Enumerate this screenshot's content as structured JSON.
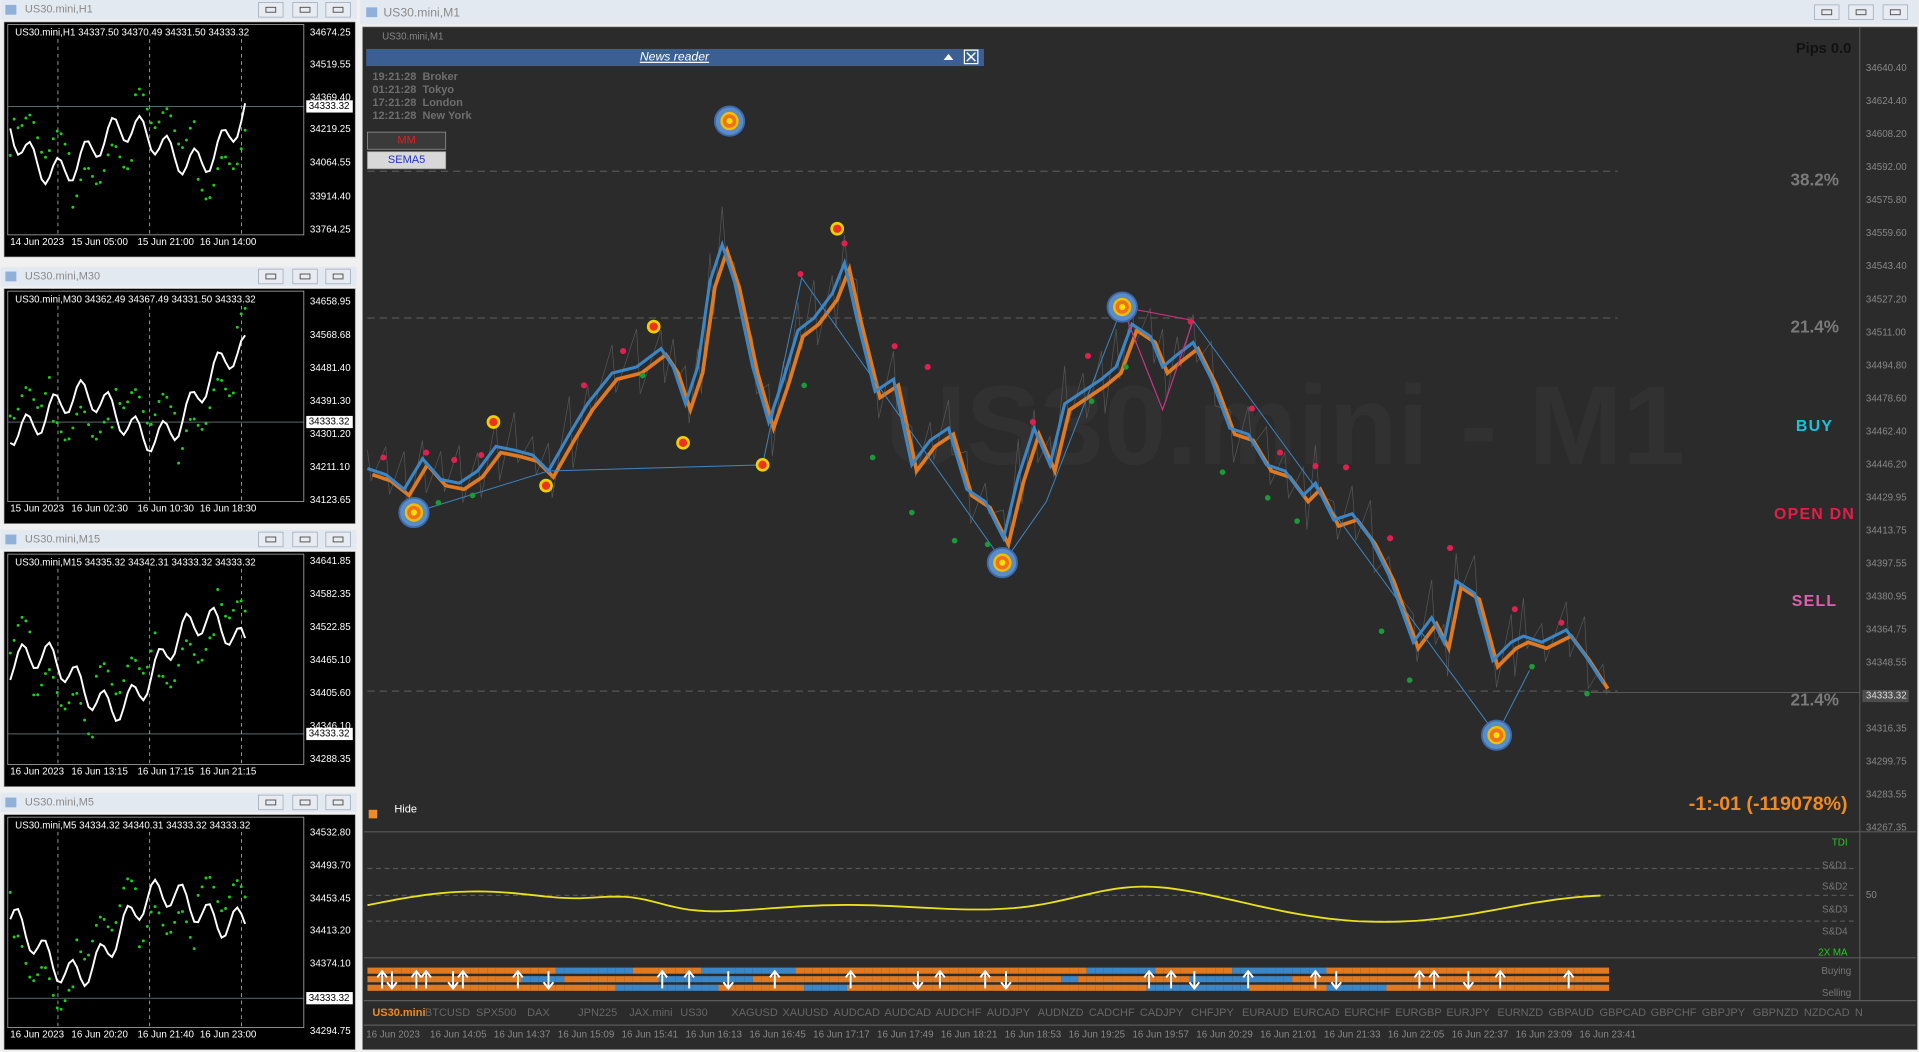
{
  "windows": [
    {
      "title": "US30.mini,H1",
      "header": "US30.mini,H1  34337.50 34370.49 34331.50 34333.32",
      "prices": [
        "34674.25",
        "34519.55",
        "34369.40",
        "34219.25",
        "34064.55",
        "33914.40",
        "33764.25"
      ],
      "current": "34333.32",
      "dates": [
        "14 Jun 2023",
        "15 Jun 05:00",
        "15 Jun 21:00",
        "16 Jun 14:00"
      ]
    },
    {
      "title": "US30.mini,M30",
      "header": "US30.mini,M30  34362.49 34367.49 34331.50 34333.32",
      "prices": [
        "34658.95",
        "34568.68",
        "34481.40",
        "34391.30",
        "34301.20",
        "34211.10",
        "34123.65"
      ],
      "current": "34333.32",
      "dates": [
        "15 Jun 2023",
        "16 Jun 02:30",
        "16 Jun 10:30",
        "16 Jun 18:30"
      ]
    },
    {
      "title": "US30.mini,M15",
      "header": "US30.mini,M15  34335.32 34342.31 34333.32 34333.32",
      "prices": [
        "34641.85",
        "34582.35",
        "34522.85",
        "34465.10",
        "34405.60",
        "34346.10",
        "34288.35"
      ],
      "current": "34333.32",
      "dates": [
        "16 Jun 2023",
        "16 Jun 13:15",
        "16 Jun 17:15",
        "16 Jun 21:15"
      ]
    },
    {
      "title": "US30.mini,M5",
      "header": "US30.mini,M5  34334.32 34340.31 34333.32 34333.32",
      "prices": [
        "34532.80",
        "34493.70",
        "34453.45",
        "34413.20",
        "34374.10",
        "34294.75"
      ],
      "current": "34333.32",
      "dates": [
        "16 Jun 2023",
        "16 Jun 20:20",
        "16 Jun 21:40",
        "16 Jun 23:00"
      ]
    }
  ],
  "main": {
    "title": "US30.mini,M1",
    "header": "US30.mini,M1",
    "watermark": "US30.mini - M1",
    "news_reader": "News reader",
    "sessions": [
      {
        "time": "19:21:28",
        "name": "Broker"
      },
      {
        "time": "01:21:28",
        "name": "Tokyo"
      },
      {
        "time": "17:21:28",
        "name": "London"
      },
      {
        "time": "12:21:28",
        "name": "New York"
      }
    ],
    "buttons": [
      "MM",
      "SEMA5"
    ],
    "pips": "Pips 0.0",
    "levels": [
      "38.2%",
      "21.4%",
      "21.4%"
    ],
    "signals": [
      "BUY",
      "OPEN DN",
      "SELL"
    ],
    "hide": "Hide",
    "status": "-1:-01 (-119078%)",
    "prices": [
      "34640.40",
      "34624.40",
      "34608.20",
      "34592.00",
      "34575.80",
      "34559.60",
      "34543.40",
      "34527.20",
      "34511.00",
      "34494.80",
      "34478.60",
      "34462.40",
      "34446.20",
      "34429.95",
      "34413.75",
      "34397.55",
      "34380.95",
      "34364.75",
      "34348.55",
      "34333.32",
      "34316.35",
      "34299.75",
      "34283.55",
      "34267.35"
    ],
    "indicator_labels": [
      "TDI",
      "S&D1",
      "S&D2",
      "S&D3",
      "S&D4",
      "2X MA"
    ],
    "indicator_scale": [
      "50"
    ],
    "flow_labels": [
      "Buying",
      "Selling"
    ],
    "symbols": [
      "US30.mini",
      "BTCUSD",
      "SPX500",
      "DAX",
      "JPN225",
      "JAX.mini",
      "US30",
      "XAGUSD",
      "XAUUSD",
      "AUDCAD",
      "AUDCAD",
      "AUDCHF",
      "AUDJPY",
      "AUDNZD",
      "CADCHF",
      "CADJPY",
      "CHFJPY",
      "EURAUD",
      "EURCAD",
      "EURCHF",
      "EURGBP",
      "EURJPY",
      "EURNZD",
      "GBPAUD",
      "GBPCAD",
      "GBPCHF",
      "GBPJPY",
      "GBPNZD",
      "NZDCAD",
      "N"
    ],
    "dates": [
      "16 Jun 2023",
      "16 Jun 14:05",
      "16 Jun 14:37",
      "16 Jun 15:09",
      "16 Jun 15:41",
      "16 Jun 16:13",
      "16 Jun 16:45",
      "16 Jun 17:17",
      "16 Jun 17:49",
      "16 Jun 18:21",
      "16 Jun 18:53",
      "16 Jun 19:25",
      "16 Jun 19:57",
      "16 Jun 20:29",
      "16 Jun 21:01",
      "16 Jun 21:33",
      "16 Jun 22:05",
      "16 Jun 22:37",
      "16 Jun 23:09",
      "16 Jun 23:41"
    ]
  }
}
